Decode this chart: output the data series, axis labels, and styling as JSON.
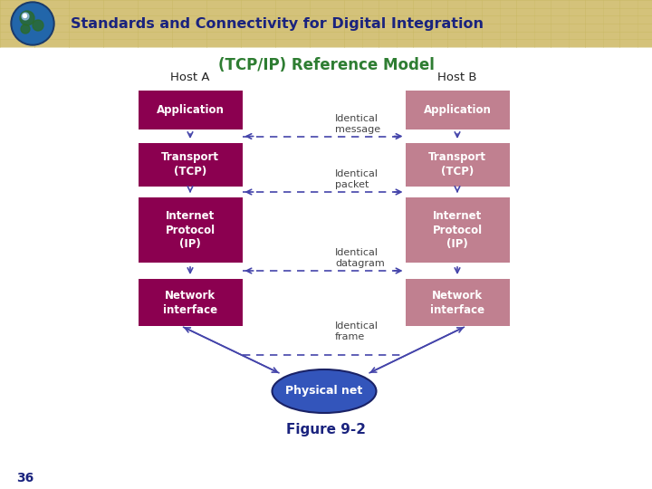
{
  "title_header": "Standards and Connectivity for Digital Integration",
  "header_bg": "#D4C27A",
  "header_text_color": "#1a237e",
  "subtitle": "(TCP/IP) Reference Model",
  "subtitle_color": "#2e7d32",
  "figure_label": "Figure 9-2",
  "page_number": "36",
  "footer_text_color": "#1a237e",
  "bg_color": "#ffffff",
  "host_a_label": "Host A",
  "host_b_label": "Host B",
  "layers_left": [
    "Application",
    "Transport\n(TCP)",
    "Internet\nProtocol\n(IP)",
    "Network\ninterface"
  ],
  "layers_right": [
    "Application",
    "Transport\n(TCP)",
    "Internet\nProtocol\n(IP)",
    "Network\ninterface"
  ],
  "layer_labels": [
    "Identical\nmessage",
    "Identical\npacket",
    "Identical\ndatagram",
    "Identical\nframe"
  ],
  "box_color_left": "#8B0050",
  "box_color_right": "#C08090",
  "box_text_color": "#ffffff",
  "arrow_color": "#4444aa",
  "ellipse_color": "#3355bb",
  "ellipse_text": "Physical net",
  "ellipse_text_color": "#ffffff",
  "label_text_color": "#444444",
  "grid_color": "#c8b860",
  "globe_dark": "#1a3a6a",
  "globe_mid": "#2266aa",
  "globe_light": "#4488cc"
}
